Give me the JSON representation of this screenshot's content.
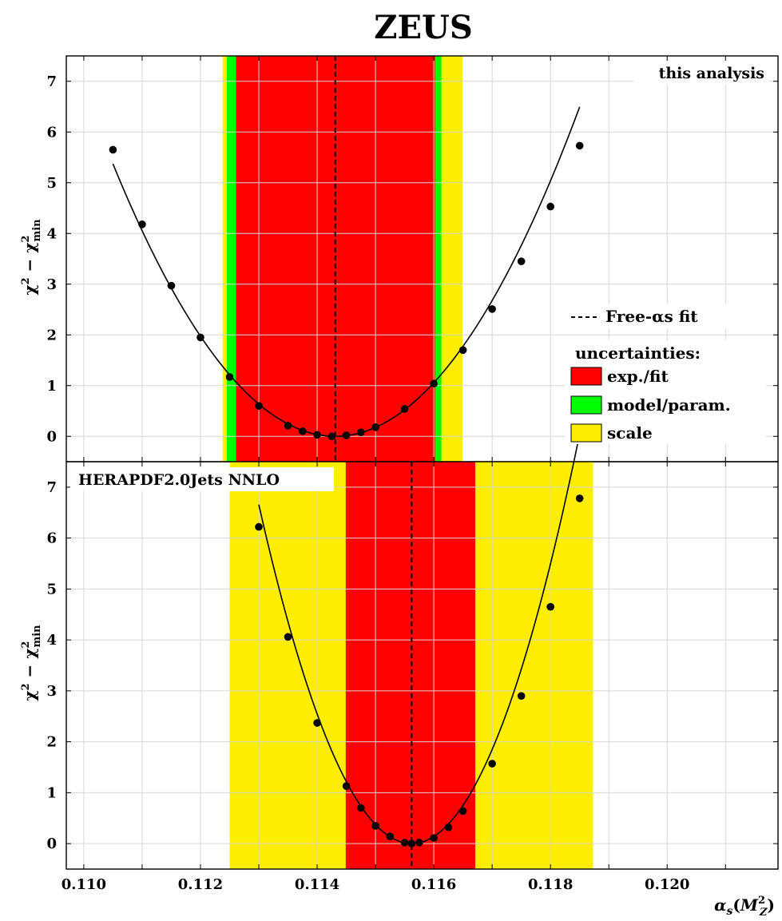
{
  "title": "ZEUS",
  "chart_data": [
    {
      "type": "scatter",
      "panel_label": "this analysis",
      "xlim": [
        0.1097,
        0.1219
      ],
      "ylim": [
        -0.5,
        7.5
      ],
      "x_ticks": [
        "0.110",
        "0.112",
        "0.114",
        "0.116",
        "0.118",
        "0.120"
      ],
      "y_ticks": [
        "0",
        "1",
        "2",
        "3",
        "4",
        "5",
        "6",
        "7"
      ],
      "ylabel": "χ² − χ²min",
      "grid": true,
      "best_fit": 0.11431,
      "bands": [
        {
          "kind": "scale",
          "from": 0.11238,
          "to": 0.11649,
          "color": "#ffee00"
        },
        {
          "kind": "model",
          "from": 0.11245,
          "to": 0.11613,
          "color": "#00ff00"
        },
        {
          "kind": "exp",
          "from": 0.11261,
          "to": 0.11602,
          "color": "#ff0000"
        }
      ],
      "points": [
        [
          0.1105,
          5.65
        ],
        [
          0.111,
          4.18
        ],
        [
          0.1115,
          2.97
        ],
        [
          0.112,
          1.95
        ],
        [
          0.1125,
          1.17
        ],
        [
          0.113,
          0.6
        ],
        [
          0.1135,
          0.21
        ],
        [
          0.11375,
          0.1
        ],
        [
          0.114,
          0.03
        ],
        [
          0.11425,
          0.0
        ],
        [
          0.1145,
          0.02
        ],
        [
          0.11475,
          0.08
        ],
        [
          0.115,
          0.18
        ],
        [
          0.1155,
          0.54
        ],
        [
          0.116,
          1.04
        ],
        [
          0.1165,
          1.7
        ],
        [
          0.117,
          2.51
        ],
        [
          0.1175,
          3.45
        ],
        [
          0.118,
          4.53
        ],
        [
          0.1185,
          5.73
        ]
      ],
      "fit_curve": {
        "x_range": [
          0.1105,
          0.1185
        ],
        "x0": 0.11431,
        "a": 370000.0
      }
    },
    {
      "type": "scatter",
      "panel_label": "HERAPDF2.0Jets NNLO",
      "xlim": [
        0.1097,
        0.1219
      ],
      "ylim": [
        -0.5,
        7.5
      ],
      "x_ticks": [
        "0.110",
        "0.112",
        "0.114",
        "0.116",
        "0.118",
        "0.120"
      ],
      "y_ticks": [
        "0",
        "1",
        "2",
        "3",
        "4",
        "5",
        "6",
        "7"
      ],
      "ylabel": "χ² − χ²min",
      "xlabel": "αs(M²Z)",
      "grid": true,
      "best_fit": 0.11562,
      "bands": [
        {
          "kind": "scale",
          "from": 0.1125,
          "to": 0.11873,
          "color": "#ffee00"
        },
        {
          "kind": "exp",
          "from": 0.11449,
          "to": 0.11671,
          "color": "#ff0000"
        }
      ],
      "points": [
        [
          0.113,
          6.22
        ],
        [
          0.1135,
          4.06
        ],
        [
          0.114,
          2.37
        ],
        [
          0.1145,
          1.13
        ],
        [
          0.11475,
          0.7
        ],
        [
          0.115,
          0.35
        ],
        [
          0.11525,
          0.14
        ],
        [
          0.1155,
          0.02
        ],
        [
          0.11562,
          0.0
        ],
        [
          0.11575,
          0.02
        ],
        [
          0.116,
          0.11
        ],
        [
          0.11625,
          0.32
        ],
        [
          0.1165,
          0.64
        ],
        [
          0.117,
          1.57
        ],
        [
          0.1175,
          2.9
        ],
        [
          0.118,
          4.65
        ],
        [
          0.1185,
          6.78
        ]
      ],
      "fit_curve": {
        "x_range": [
          0.113,
          0.1185
        ],
        "x0": 0.11562,
        "a": 970000.0
      }
    }
  ],
  "legend": {
    "free_fit_label": "Free-αs fit",
    "uncertainties_heading": "uncertainties:",
    "items": [
      {
        "label": "exp./fit",
        "color": "#ff0000"
      },
      {
        "label": "model/param.",
        "color": "#00ff00"
      },
      {
        "label": "scale",
        "color": "#ffee00"
      }
    ]
  }
}
